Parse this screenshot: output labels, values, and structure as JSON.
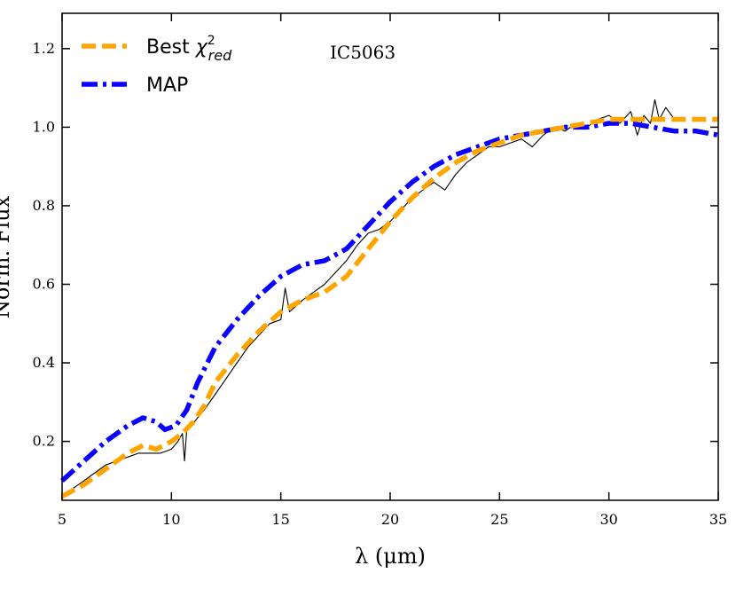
{
  "chart_data": {
    "type": "line",
    "title": "",
    "annotation": "IC5063",
    "xlabel": "λ (μm)",
    "ylabel": "Norm. Flux",
    "xlim": [
      5,
      35
    ],
    "ylim": [
      0.05,
      1.29
    ],
    "xticks": [
      5,
      10,
      15,
      20,
      25,
      30,
      35
    ],
    "yticks": [
      0.2,
      0.4,
      0.6,
      0.8,
      1.0,
      1.2
    ],
    "xtick_labels": [
      "5",
      "10",
      "15",
      "20",
      "25",
      "30",
      "35"
    ],
    "ytick_labels": [
      "0.2",
      "0.4",
      "0.6",
      "0.8",
      "1.0",
      "1.2"
    ],
    "legend": {
      "position": "top-left",
      "entries": [
        {
          "label_main": "Best ",
          "label_symbol": "χ",
          "label_sup": "2",
          "label_sub": "red",
          "series": "best_chi2"
        },
        {
          "label_main": "MAP",
          "series": "map"
        }
      ]
    },
    "series": [
      {
        "name": "observed",
        "style": "solid",
        "color": "#000000",
        "x": [
          5.0,
          5.5,
          6.0,
          6.5,
          7.0,
          7.5,
          8.0,
          8.5,
          9.0,
          9.5,
          10.0,
          10.3,
          10.5,
          10.6,
          10.7,
          10.9,
          11.2,
          11.5,
          12.0,
          12.5,
          13.0,
          13.5,
          14.0,
          14.5,
          15.0,
          15.2,
          15.4,
          15.6,
          16.0,
          16.5,
          17.0,
          17.5,
          18.0,
          18.5,
          19.0,
          19.5,
          20.0,
          20.5,
          21.0,
          21.5,
          22.0,
          22.5,
          23.0,
          23.5,
          24.0,
          24.5,
          25.0,
          25.5,
          26.0,
          26.5,
          27.0,
          27.5,
          28.0,
          28.5,
          29.0,
          29.5,
          30.0,
          30.5,
          31.0,
          31.3,
          31.6,
          31.9,
          32.1,
          32.3,
          32.6,
          33.0
        ],
        "y": [
          0.06,
          0.08,
          0.1,
          0.12,
          0.14,
          0.15,
          0.16,
          0.17,
          0.17,
          0.17,
          0.18,
          0.2,
          0.22,
          0.15,
          0.23,
          0.24,
          0.26,
          0.28,
          0.32,
          0.36,
          0.4,
          0.44,
          0.47,
          0.5,
          0.51,
          0.59,
          0.53,
          0.54,
          0.56,
          0.58,
          0.6,
          0.63,
          0.66,
          0.7,
          0.73,
          0.74,
          0.76,
          0.79,
          0.82,
          0.84,
          0.86,
          0.84,
          0.88,
          0.91,
          0.93,
          0.95,
          0.95,
          0.96,
          0.97,
          0.95,
          0.98,
          1.0,
          0.99,
          1.01,
          1.0,
          1.02,
          1.03,
          1.01,
          1.04,
          0.98,
          1.03,
          1.01,
          1.07,
          1.02,
          1.05,
          1.02
        ]
      },
      {
        "name": "best_chi2",
        "style": "dashed",
        "color": "#ffa500",
        "x": [
          5.0,
          6.0,
          7.0,
          8.0,
          8.7,
          9.3,
          10.0,
          10.5,
          11.0,
          11.5,
          12.0,
          13.0,
          14.0,
          15.0,
          16.0,
          17.0,
          18.0,
          19.0,
          20.0,
          21.0,
          22.0,
          23.0,
          24.0,
          25.0,
          26.0,
          27.0,
          28.0,
          29.0,
          30.0,
          31.0,
          32.0,
          33.0,
          35.0
        ],
        "y": [
          0.06,
          0.09,
          0.13,
          0.17,
          0.19,
          0.18,
          0.2,
          0.22,
          0.25,
          0.29,
          0.35,
          0.42,
          0.48,
          0.53,
          0.56,
          0.58,
          0.62,
          0.69,
          0.76,
          0.82,
          0.87,
          0.91,
          0.94,
          0.96,
          0.98,
          0.99,
          1.0,
          1.01,
          1.02,
          1.02,
          1.02,
          1.02,
          1.02
        ]
      },
      {
        "name": "map",
        "style": "dashdot",
        "color": "#0a00ff",
        "x": [
          5.0,
          6.0,
          7.0,
          8.0,
          8.7,
          9.3,
          9.7,
          10.2,
          10.7,
          11.2,
          12.0,
          13.0,
          14.0,
          15.0,
          16.0,
          17.0,
          18.0,
          19.0,
          20.0,
          21.0,
          22.0,
          23.0,
          24.0,
          25.0,
          26.0,
          27.0,
          28.0,
          29.0,
          30.0,
          31.0,
          32.0,
          33.0,
          34.0,
          35.0
        ],
        "y": [
          0.1,
          0.15,
          0.2,
          0.24,
          0.26,
          0.25,
          0.23,
          0.24,
          0.28,
          0.35,
          0.44,
          0.51,
          0.57,
          0.62,
          0.65,
          0.66,
          0.69,
          0.75,
          0.81,
          0.86,
          0.9,
          0.93,
          0.95,
          0.97,
          0.98,
          0.99,
          1.0,
          1.0,
          1.01,
          1.01,
          1.0,
          0.99,
          0.99,
          0.98
        ]
      }
    ]
  }
}
